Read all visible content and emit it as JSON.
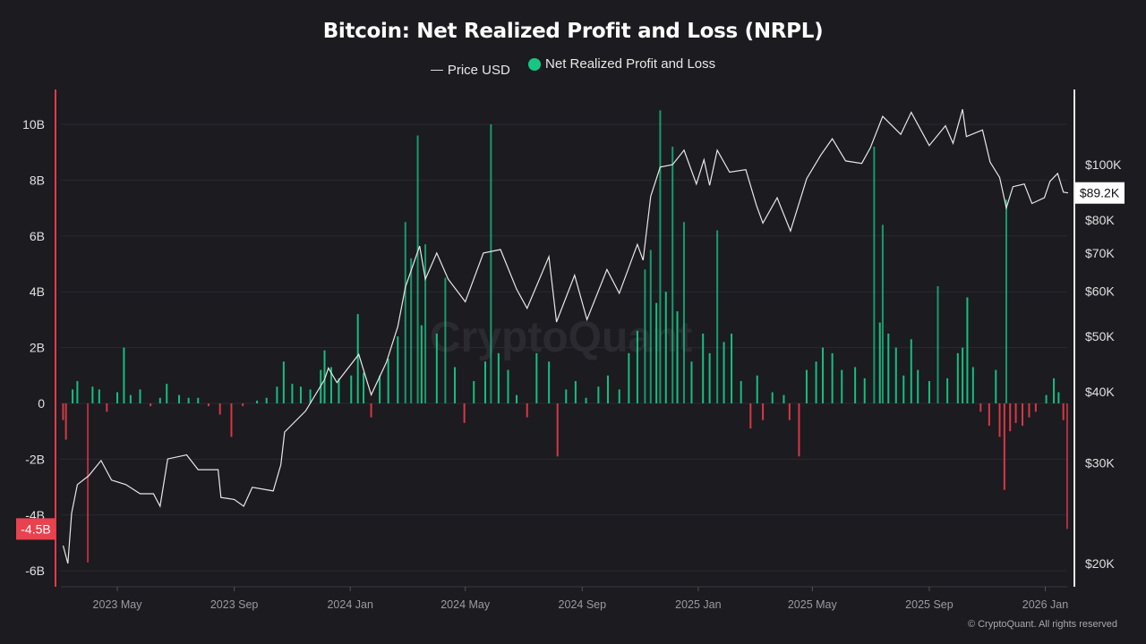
{
  "chart_data": {
    "type": "bar+line",
    "title": "Bitcoin: Net Realized Profit and Loss (NRPL)",
    "legend": [
      {
        "name": "Price USD",
        "color": "#dddddd",
        "marker": "line"
      },
      {
        "name": "Net Realized Profit and Loss",
        "color": "#16c784",
        "marker": "dot"
      }
    ],
    "legend_position": "top-center",
    "colors": {
      "positive": "#16c784",
      "negative": "#e23a48",
      "price": "#e8e8e8",
      "background": "#1b1b20"
    },
    "left_axis": {
      "ticks": [
        "10B",
        "8B",
        "6B",
        "4B",
        "2B",
        "0",
        "-2B",
        "-4B",
        "-6B"
      ],
      "tick_values": [
        10,
        8,
        6,
        4,
        2,
        0,
        -2,
        -4,
        -6
      ],
      "ylim": [
        -6.7,
        11.5
      ],
      "unit": "B USD",
      "current_label": "-4.5B"
    },
    "right_axis": {
      "scale": "log",
      "ticks": [
        "$100K",
        "$80K",
        "$70K",
        "$60K",
        "$50K",
        "$40K",
        "$30K",
        "$20K"
      ],
      "tick_values": [
        100000,
        80000,
        70000,
        60000,
        50000,
        40000,
        30000,
        20000
      ],
      "current_label": "$89.2K"
    },
    "x_axis": {
      "ticks": [
        "2023 May",
        "2023 Sep",
        "2024 Jan",
        "2024 May",
        "2024 Sep",
        "2025 Jan",
        "2025 May",
        "2025 Sep",
        "2026 Jan"
      ],
      "tick_dates": [
        "2023-05-01",
        "2023-09-01",
        "2024-01-01",
        "2024-05-01",
        "2024-09-01",
        "2025-01-01",
        "2025-05-01",
        "2025-09-01",
        "2026-01-01"
      ],
      "range": [
        "2023-03-03",
        "2026-01-27"
      ]
    },
    "grid": true,
    "price_series": [
      [
        "2023-03-05",
        21500
      ],
      [
        "2023-03-10",
        20000
      ],
      [
        "2023-03-14",
        24500
      ],
      [
        "2023-03-20",
        27500
      ],
      [
        "2023-04-01",
        28500
      ],
      [
        "2023-04-14",
        30300
      ],
      [
        "2023-04-25",
        28000
      ],
      [
        "2023-05-10",
        27500
      ],
      [
        "2023-05-25",
        26500
      ],
      [
        "2023-06-08",
        26500
      ],
      [
        "2023-06-15",
        25200
      ],
      [
        "2023-06-23",
        30500
      ],
      [
        "2023-07-13",
        31000
      ],
      [
        "2023-07-25",
        29200
      ],
      [
        "2023-08-15",
        29200
      ],
      [
        "2023-08-18",
        26100
      ],
      [
        "2023-09-01",
        25900
      ],
      [
        "2023-09-11",
        25200
      ],
      [
        "2023-09-20",
        27200
      ],
      [
        "2023-10-12",
        26800
      ],
      [
        "2023-10-20",
        29800
      ],
      [
        "2023-10-24",
        34000
      ],
      [
        "2023-11-15",
        37000
      ],
      [
        "2023-12-05",
        42000
      ],
      [
        "2023-12-09",
        44000
      ],
      [
        "2023-12-18",
        41500
      ],
      [
        "2024-01-10",
        46500
      ],
      [
        "2024-01-23",
        39500
      ],
      [
        "2024-02-08",
        45000
      ],
      [
        "2024-02-20",
        52000
      ],
      [
        "2024-02-28",
        61000
      ],
      [
        "2024-03-14",
        72000
      ],
      [
        "2024-03-20",
        63000
      ],
      [
        "2024-04-01",
        70000
      ],
      [
        "2024-04-13",
        63000
      ],
      [
        "2024-05-01",
        57500
      ],
      [
        "2024-05-20",
        70000
      ],
      [
        "2024-06-07",
        71000
      ],
      [
        "2024-06-24",
        60500
      ],
      [
        "2024-07-05",
        56000
      ],
      [
        "2024-07-28",
        69000
      ],
      [
        "2024-08-05",
        53000
      ],
      [
        "2024-08-24",
        64000
      ],
      [
        "2024-09-06",
        53500
      ],
      [
        "2024-09-27",
        65500
      ],
      [
        "2024-10-10",
        59500
      ],
      [
        "2024-10-29",
        72500
      ],
      [
        "2024-11-04",
        68000
      ],
      [
        "2024-11-12",
        88000
      ],
      [
        "2024-11-22",
        99000
      ],
      [
        "2024-12-05",
        100000
      ],
      [
        "2024-12-17",
        106000
      ],
      [
        "2024-12-30",
        92500
      ],
      [
        "2025-01-07",
        102000
      ],
      [
        "2025-01-13",
        92000
      ],
      [
        "2025-01-21",
        106000
      ],
      [
        "2025-02-03",
        97000
      ],
      [
        "2025-02-20",
        98000
      ],
      [
        "2025-03-03",
        85000
      ],
      [
        "2025-03-10",
        79000
      ],
      [
        "2025-03-25",
        87500
      ],
      [
        "2025-04-08",
        76500
      ],
      [
        "2025-04-25",
        94500
      ],
      [
        "2025-05-10",
        104000
      ],
      [
        "2025-05-22",
        111000
      ],
      [
        "2025-06-05",
        101500
      ],
      [
        "2025-06-22",
        100500
      ],
      [
        "2025-07-01",
        107000
      ],
      [
        "2025-07-14",
        121500
      ],
      [
        "2025-08-02",
        113000
      ],
      [
        "2025-08-13",
        123500
      ],
      [
        "2025-09-01",
        108000
      ],
      [
        "2025-09-18",
        117000
      ],
      [
        "2025-09-26",
        109000
      ],
      [
        "2025-10-06",
        125000
      ],
      [
        "2025-10-10",
        112000
      ],
      [
        "2025-10-27",
        115000
      ],
      [
        "2025-11-04",
        101000
      ],
      [
        "2025-11-14",
        95000
      ],
      [
        "2025-11-21",
        84000
      ],
      [
        "2025-11-28",
        91500
      ],
      [
        "2025-12-10",
        92500
      ],
      [
        "2025-12-18",
        85500
      ],
      [
        "2025-12-31",
        87500
      ],
      [
        "2026-01-06",
        93500
      ],
      [
        "2026-01-14",
        96500
      ],
      [
        "2026-01-20",
        89500
      ],
      [
        "2026-01-25",
        89200
      ]
    ],
    "nrpl_series_billion_usd": [
      [
        "2023-03-05",
        -0.6
      ],
      [
        "2023-03-08",
        -1.3
      ],
      [
        "2023-03-15",
        0.5
      ],
      [
        "2023-03-20",
        0.8
      ],
      [
        "2023-03-31",
        -5.7
      ],
      [
        "2023-04-05",
        0.6
      ],
      [
        "2023-04-12",
        0.5
      ],
      [
        "2023-04-20",
        -0.3
      ],
      [
        "2023-05-01",
        0.4
      ],
      [
        "2023-05-08",
        2.0
      ],
      [
        "2023-05-15",
        0.3
      ],
      [
        "2023-05-25",
        0.5
      ],
      [
        "2023-06-05",
        -0.1
      ],
      [
        "2023-06-15",
        0.2
      ],
      [
        "2023-06-22",
        0.7
      ],
      [
        "2023-07-05",
        0.3
      ],
      [
        "2023-07-15",
        0.2
      ],
      [
        "2023-07-25",
        0.2
      ],
      [
        "2023-08-05",
        -0.1
      ],
      [
        "2023-08-17",
        -0.4
      ],
      [
        "2023-08-29",
        -1.2
      ],
      [
        "2023-09-10",
        -0.1
      ],
      [
        "2023-09-25",
        0.1
      ],
      [
        "2023-10-05",
        0.2
      ],
      [
        "2023-10-16",
        0.6
      ],
      [
        "2023-10-23",
        1.5
      ],
      [
        "2023-11-01",
        0.7
      ],
      [
        "2023-11-10",
        0.6
      ],
      [
        "2023-11-20",
        0.5
      ],
      [
        "2023-12-01",
        1.2
      ],
      [
        "2023-12-05",
        1.9
      ],
      [
        "2023-12-12",
        1.3
      ],
      [
        "2023-12-20",
        0.9
      ],
      [
        "2024-01-02",
        1.0
      ],
      [
        "2024-01-09",
        3.2
      ],
      [
        "2024-01-15",
        1.1
      ],
      [
        "2024-01-23",
        -0.5
      ],
      [
        "2024-02-01",
        1.0
      ],
      [
        "2024-02-10",
        1.6
      ],
      [
        "2024-02-20",
        2.4
      ],
      [
        "2024-02-28",
        6.5
      ],
      [
        "2024-03-05",
        5.2
      ],
      [
        "2024-03-12",
        9.6
      ],
      [
        "2024-03-16",
        2.8
      ],
      [
        "2024-03-20",
        5.7
      ],
      [
        "2024-04-01",
        2.5
      ],
      [
        "2024-04-10",
        4.5
      ],
      [
        "2024-04-20",
        1.3
      ],
      [
        "2024-04-30",
        -0.7
      ],
      [
        "2024-05-10",
        0.8
      ],
      [
        "2024-05-22",
        1.5
      ],
      [
        "2024-05-28",
        10.0
      ],
      [
        "2024-06-05",
        1.8
      ],
      [
        "2024-06-15",
        1.2
      ],
      [
        "2024-06-24",
        0.3
      ],
      [
        "2024-07-05",
        -0.5
      ],
      [
        "2024-07-15",
        1.8
      ],
      [
        "2024-07-28",
        1.5
      ],
      [
        "2024-08-06",
        -1.9
      ],
      [
        "2024-08-15",
        0.5
      ],
      [
        "2024-08-25",
        0.8
      ],
      [
        "2024-09-05",
        0.2
      ],
      [
        "2024-09-18",
        0.6
      ],
      [
        "2024-09-28",
        1.0
      ],
      [
        "2024-10-10",
        0.5
      ],
      [
        "2024-10-20",
        1.8
      ],
      [
        "2024-10-29",
        2.6
      ],
      [
        "2024-11-06",
        4.8
      ],
      [
        "2024-11-12",
        5.5
      ],
      [
        "2024-11-18",
        3.6
      ],
      [
        "2024-11-22",
        10.5
      ],
      [
        "2024-11-28",
        4.0
      ],
      [
        "2024-12-05",
        9.2
      ],
      [
        "2024-12-10",
        3.3
      ],
      [
        "2024-12-17",
        6.5
      ],
      [
        "2024-12-25",
        1.5
      ],
      [
        "2025-01-06",
        2.5
      ],
      [
        "2025-01-13",
        1.8
      ],
      [
        "2025-01-21",
        6.2
      ],
      [
        "2025-01-28",
        2.2
      ],
      [
        "2025-02-05",
        2.5
      ],
      [
        "2025-02-15",
        0.8
      ],
      [
        "2025-02-25",
        -0.9
      ],
      [
        "2025-03-04",
        1.0
      ],
      [
        "2025-03-10",
        -0.6
      ],
      [
        "2025-03-20",
        0.4
      ],
      [
        "2025-04-01",
        0.3
      ],
      [
        "2025-04-07",
        -0.6
      ],
      [
        "2025-04-17",
        -1.9
      ],
      [
        "2025-04-25",
        1.2
      ],
      [
        "2025-05-05",
        1.5
      ],
      [
        "2025-05-12",
        2.0
      ],
      [
        "2025-05-22",
        1.8
      ],
      [
        "2025-06-01",
        1.2
      ],
      [
        "2025-06-15",
        1.3
      ],
      [
        "2025-06-25",
        0.9
      ],
      [
        "2025-07-05",
        9.2
      ],
      [
        "2025-07-11",
        2.9
      ],
      [
        "2025-07-14",
        6.4
      ],
      [
        "2025-07-20",
        2.5
      ],
      [
        "2025-07-28",
        2.0
      ],
      [
        "2025-08-05",
        1.0
      ],
      [
        "2025-08-13",
        2.3
      ],
      [
        "2025-08-20",
        1.2
      ],
      [
        "2025-09-01",
        0.8
      ],
      [
        "2025-09-10",
        4.2
      ],
      [
        "2025-09-20",
        0.9
      ],
      [
        "2025-10-01",
        1.8
      ],
      [
        "2025-10-06",
        2.0
      ],
      [
        "2025-10-11",
        3.8
      ],
      [
        "2025-10-17",
        1.3
      ],
      [
        "2025-10-25",
        -0.3
      ],
      [
        "2025-11-03",
        -0.8
      ],
      [
        "2025-11-10",
        1.2
      ],
      [
        "2025-11-14",
        -1.2
      ],
      [
        "2025-11-19",
        -3.1
      ],
      [
        "2025-11-21",
        7.3
      ],
      [
        "2025-11-25",
        -1.0
      ],
      [
        "2025-12-01",
        -0.7
      ],
      [
        "2025-12-08",
        -0.8
      ],
      [
        "2025-12-15",
        -0.5
      ],
      [
        "2025-12-22",
        -0.3
      ],
      [
        "2026-01-02",
        0.3
      ],
      [
        "2026-01-10",
        0.9
      ],
      [
        "2026-01-15",
        0.4
      ],
      [
        "2026-01-20",
        -0.6
      ],
      [
        "2026-01-24",
        -4.5
      ]
    ]
  },
  "watermark": "CryptoQuant",
  "copyright": "© CryptoQuant. All rights reserved"
}
